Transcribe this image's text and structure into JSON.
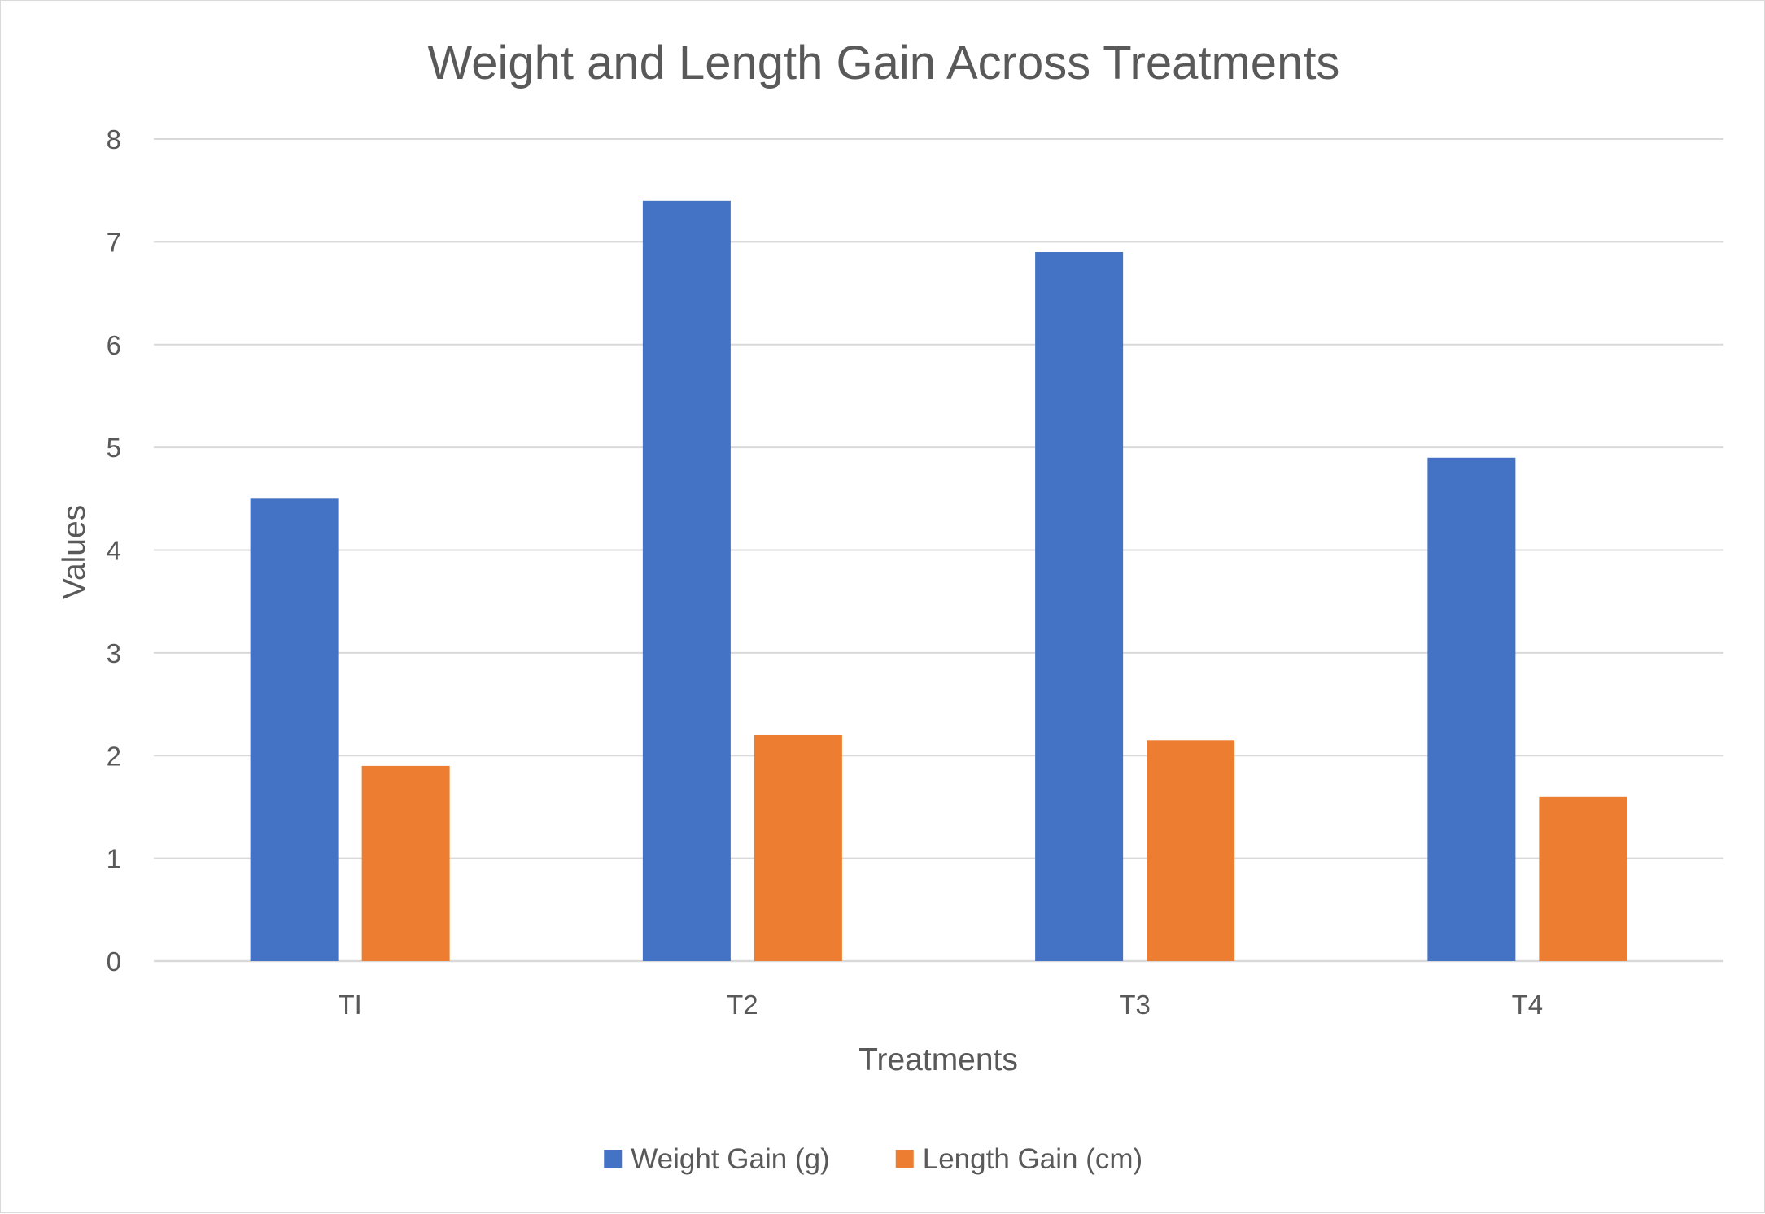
{
  "chart_data": {
    "type": "bar",
    "title": "Weight and Length Gain Across Treatments",
    "xlabel": "Treatments",
    "ylabel": "Values",
    "categories": [
      "TI",
      "T2",
      "T3",
      "T4"
    ],
    "series": [
      {
        "name": "Weight Gain (g)",
        "color": "#4472c4",
        "values": [
          4.5,
          7.4,
          6.9,
          4.9
        ]
      },
      {
        "name": "Length Gain (cm)",
        "color": "#ed7d31",
        "values": [
          1.9,
          2.2,
          2.15,
          1.6
        ]
      }
    ],
    "ylim": [
      0,
      8
    ],
    "yticks": [
      "0",
      "1",
      "2",
      "3",
      "4",
      "5",
      "6",
      "7",
      "8"
    ],
    "grid": true,
    "legend_position": "bottom"
  }
}
